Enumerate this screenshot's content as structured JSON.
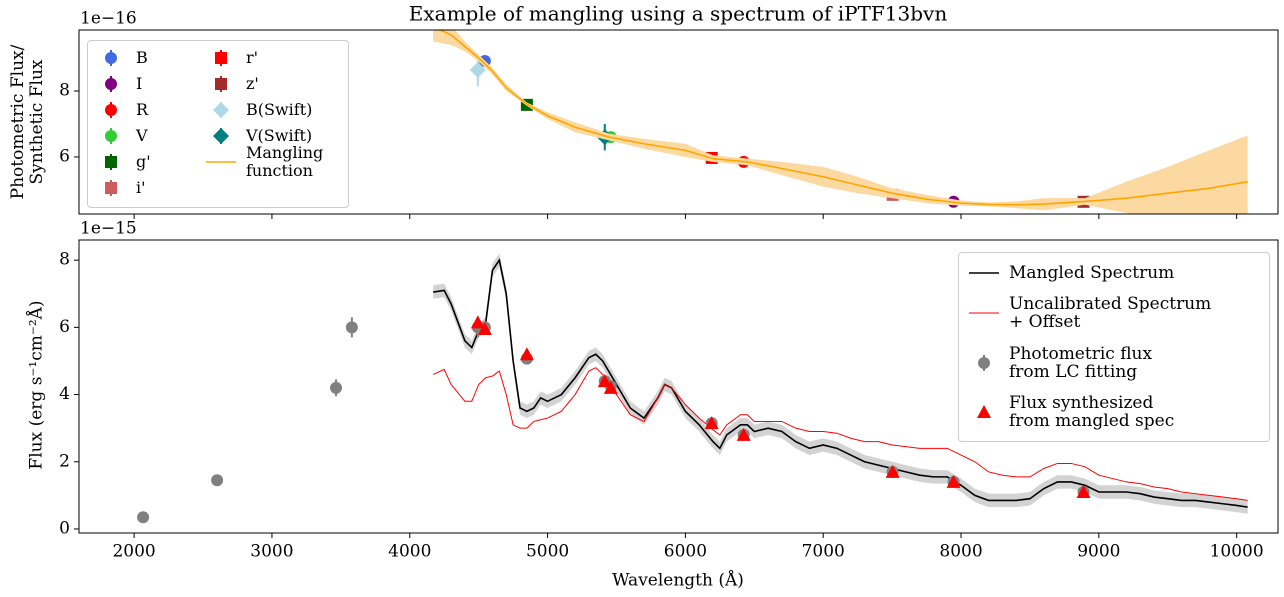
{
  "chart_data": [
    {
      "type": "line",
      "title": "Example of mangling using a spectrum of iPTF13bvn",
      "ylabel": "Photometric Flux/\nSynthetic Flux",
      "offset_label": "1e−16",
      "xlim": [
        1600,
        10300
      ],
      "xticks": [
        2000,
        3000,
        4000,
        5000,
        6000,
        7000,
        8000,
        9000,
        10000
      ],
      "xticklabels": false,
      "ylim": [
        4.27,
        9.85
      ],
      "yticks": [
        6,
        8
      ],
      "legend": "upper left",
      "series": [
        {
          "name": "B",
          "color": "#4169e1",
          "marker": "circle",
          "x": [
            4545
          ],
          "values": [
            8.91
          ],
          "errors": [
            0.1
          ]
        },
        {
          "name": "I",
          "color": "#800080",
          "marker": "circle",
          "x": [
            7946
          ],
          "values": [
            4.64
          ],
          "errors": [
            0.05
          ]
        },
        {
          "name": "R",
          "color": "#ff0000",
          "marker": "circle",
          "x": [
            6423
          ],
          "values": [
            5.85
          ],
          "errors": [
            0.05
          ]
        },
        {
          "name": "V",
          "color": "#32cd32",
          "marker": "circle",
          "x": [
            5459
          ],
          "values": [
            6.6
          ],
          "errors": [
            0.1
          ]
        },
        {
          "name": "g'",
          "color": "#006400",
          "marker": "square",
          "x": [
            4850
          ],
          "values": [
            7.58
          ],
          "errors": [
            0.05
          ]
        },
        {
          "name": "i'",
          "color": "#cd5c5c",
          "marker": "square",
          "x": [
            7504
          ],
          "values": [
            4.85
          ],
          "errors": [
            0.15
          ]
        },
        {
          "name": "r'",
          "color": "#ff0000",
          "marker": "square",
          "x": [
            6191
          ],
          "values": [
            5.97
          ],
          "errors": [
            0.05
          ]
        },
        {
          "name": "z'",
          "color": "#a52a2a",
          "marker": "square",
          "x": [
            8889
          ],
          "values": [
            4.64
          ],
          "errors": [
            0.1
          ]
        },
        {
          "name": "B(Swift)",
          "color": "#add8e6",
          "marker": "diamond",
          "x": [
            4494
          ],
          "values": [
            8.64
          ],
          "errors": [
            0.5
          ]
        },
        {
          "name": "V(Swift)",
          "color": "#008080",
          "marker": "diamond",
          "x": [
            5415
          ],
          "values": [
            6.6
          ],
          "errors": [
            0.4
          ]
        },
        {
          "name": "Mangling\nfunction",
          "color": "#ffa500",
          "band_color": "#fcd9a0",
          "marker": "line",
          "x": [
            4170,
            4300,
            4400,
            4500,
            4600,
            4700,
            4850,
            5000,
            5200,
            5450,
            5700,
            6000,
            6200,
            6450,
            6700,
            7000,
            7250,
            7500,
            7750,
            8000,
            8200,
            8400,
            8600,
            8900,
            9200,
            9500,
            9800,
            10080
          ],
          "values": [
            9.95,
            9.7,
            9.35,
            9.0,
            8.6,
            8.1,
            7.6,
            7.25,
            6.9,
            6.6,
            6.4,
            6.2,
            5.95,
            5.85,
            5.65,
            5.4,
            5.15,
            4.9,
            4.72,
            4.6,
            4.56,
            4.55,
            4.57,
            4.65,
            4.75,
            4.9,
            5.05,
            5.25
          ],
          "lower": [
            9.5,
            9.4,
            9.2,
            8.9,
            8.5,
            8.0,
            7.55,
            7.15,
            6.75,
            6.5,
            6.25,
            6.0,
            5.85,
            5.75,
            5.45,
            5.1,
            4.9,
            4.75,
            4.6,
            4.52,
            4.5,
            4.45,
            4.38,
            4.55,
            4.3,
            4.1,
            3.95,
            3.85
          ],
          "upper": [
            10.4,
            10.0,
            9.5,
            9.1,
            8.7,
            8.2,
            7.65,
            7.35,
            7.05,
            6.7,
            6.55,
            6.4,
            6.05,
            5.95,
            5.85,
            5.7,
            5.4,
            5.05,
            4.85,
            4.68,
            4.62,
            4.65,
            4.75,
            4.75,
            5.25,
            5.7,
            6.2,
            6.65
          ]
        }
      ]
    },
    {
      "type": "line",
      "xlabel": "Wavelength (Å)",
      "ylabel": "Flux (erg s⁻¹cm⁻²Å)",
      "offset_label": "1e−15",
      "xlim": [
        1600,
        10300
      ],
      "xticks": [
        2000,
        3000,
        4000,
        5000,
        6000,
        7000,
        8000,
        9000,
        10000
      ],
      "ylim": [
        -0.12,
        8.6
      ],
      "yticks": [
        0,
        2,
        4,
        6,
        8
      ],
      "legend": "upper right",
      "x": [
        4170,
        4250,
        4300,
        4400,
        4450,
        4500,
        4550,
        4600,
        4650,
        4700,
        4750,
        4800,
        4850,
        4900,
        4950,
        5000,
        5100,
        5200,
        5300,
        5350,
        5400,
        5500,
        5600,
        5700,
        5800,
        5850,
        5900,
        6000,
        6100,
        6200,
        6250,
        6300,
        6400,
        6450,
        6500,
        6600,
        6700,
        6800,
        6900,
        7000,
        7100,
        7200,
        7300,
        7400,
        7500,
        7600,
        7700,
        7800,
        7900,
        8000,
        8100,
        8200,
        8300,
        8400,
        8500,
        8600,
        8700,
        8800,
        8900,
        9000,
        9100,
        9200,
        9300,
        9400,
        9500,
        9600,
        9700,
        9800,
        9900,
        10000,
        10080
      ],
      "series": [
        {
          "name": "Mangled Spectrum",
          "color": "#000000",
          "band_color": "#d3d3d3",
          "marker": "line",
          "error": 0.2,
          "values": [
            7.05,
            7.1,
            6.7,
            5.6,
            5.4,
            5.9,
            6.1,
            7.7,
            8.0,
            7.0,
            5.0,
            3.6,
            3.5,
            3.6,
            3.9,
            3.8,
            4.0,
            4.5,
            5.1,
            5.2,
            5.0,
            4.3,
            3.6,
            3.3,
            3.9,
            4.3,
            4.2,
            3.5,
            3.1,
            2.6,
            2.4,
            2.8,
            3.1,
            3.1,
            2.9,
            3.0,
            2.9,
            2.6,
            2.4,
            2.5,
            2.4,
            2.2,
            2.0,
            1.9,
            1.8,
            1.7,
            1.6,
            1.55,
            1.55,
            1.3,
            1.0,
            0.85,
            0.85,
            0.85,
            0.9,
            1.2,
            1.4,
            1.4,
            1.3,
            1.1,
            1.1,
            1.1,
            1.05,
            0.95,
            0.9,
            0.85,
            0.85,
            0.8,
            0.75,
            0.7,
            0.65
          ]
        },
        {
          "name": "Uncalibrated Spectrum\n+ Offset",
          "color": "#ff0000",
          "marker": "thinline",
          "values": [
            4.6,
            4.75,
            4.3,
            3.8,
            3.8,
            4.3,
            4.5,
            4.55,
            4.7,
            4.0,
            3.1,
            3.0,
            3.0,
            3.2,
            3.25,
            3.3,
            3.5,
            4.0,
            4.7,
            4.8,
            4.6,
            4.0,
            3.4,
            3.2,
            3.9,
            4.3,
            4.2,
            3.7,
            3.3,
            2.95,
            2.8,
            3.1,
            3.4,
            3.4,
            3.2,
            3.2,
            3.2,
            3.0,
            2.9,
            2.9,
            2.85,
            2.7,
            2.6,
            2.6,
            2.5,
            2.45,
            2.4,
            2.4,
            2.4,
            2.2,
            2.0,
            1.7,
            1.6,
            1.55,
            1.55,
            1.8,
            1.95,
            1.95,
            1.85,
            1.6,
            1.5,
            1.4,
            1.35,
            1.25,
            1.2,
            1.1,
            1.05,
            1.0,
            0.95,
            0.9,
            0.85
          ]
        },
        {
          "name": "Photometric flux\nfrom LC fitting",
          "color": "#808080",
          "marker": "circle",
          "x": [
            2065,
            2602,
            3465,
            3580,
            4494,
            4545,
            4850,
            5415,
            5459,
            6191,
            6423,
            7504,
            7946,
            8889
          ],
          "values": [
            0.35,
            1.45,
            4.2,
            6.0,
            6.0,
            6.0,
            5.07,
            4.4,
            4.25,
            3.15,
            2.8,
            1.7,
            1.4,
            1.1
          ],
          "errors": [
            0.05,
            0.05,
            0.25,
            0.3,
            0.3,
            0.1,
            0.1,
            0.15,
            0.1,
            0.1,
            0.1,
            0.1,
            0.1,
            0.1
          ]
        },
        {
          "name": "Flux synthesized\nfrom mangled spec",
          "color": "#ff0000",
          "marker": "triangle",
          "x": [
            4494,
            4545,
            4850,
            5415,
            5459,
            6191,
            6423,
            7504,
            7946,
            8889
          ],
          "values": [
            6.15,
            5.95,
            5.2,
            4.4,
            4.2,
            3.15,
            2.8,
            1.7,
            1.4,
            1.1
          ]
        }
      ]
    }
  ]
}
